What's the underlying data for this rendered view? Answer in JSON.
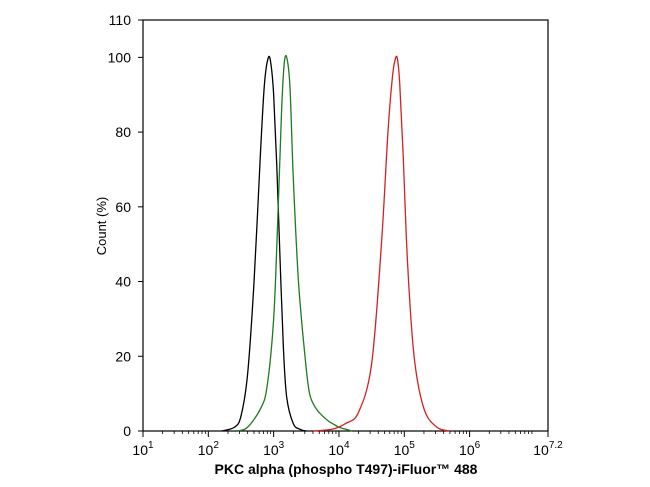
{
  "chart_data": {
    "type": "line",
    "title": "",
    "xlabel": "PKC alpha (phospho T497)-iFluor™ 488",
    "ylabel": "Count  (%)",
    "xscale": "log10",
    "xlim": [
      1,
      7.2
    ],
    "ylim": [
      0,
      110
    ],
    "x_ticks": [
      {
        "base": "10",
        "exp": "1"
      },
      {
        "base": "10",
        "exp": "2"
      },
      {
        "base": "10",
        "exp": "3"
      },
      {
        "base": "10",
        "exp": "4"
      },
      {
        "base": "10",
        "exp": "5"
      },
      {
        "base": "10",
        "exp": "6"
      },
      {
        "base": "10",
        "exp": "7.2"
      }
    ],
    "y_ticks": [
      "0",
      "20",
      "40",
      "60",
      "80",
      "100",
      "110"
    ],
    "grid": false,
    "legend": "none",
    "series": [
      {
        "color": "#000000",
        "x_log10": [
          2.2,
          2.4,
          2.5,
          2.6,
          2.7,
          2.8,
          2.86,
          2.92,
          2.96,
          3.0,
          3.05,
          3.1,
          3.15,
          3.2,
          3.3,
          3.4,
          3.5
        ],
        "y": [
          0,
          1,
          4,
          15,
          40,
          75,
          93,
          100,
          98,
          90,
          70,
          45,
          22,
          9,
          2,
          0.5,
          0
        ]
      },
      {
        "color": "#1e7a1e",
        "x_log10": [
          2.45,
          2.6,
          2.8,
          2.9,
          3.0,
          3.06,
          3.12,
          3.16,
          3.2,
          3.25,
          3.3,
          3.38,
          3.48,
          3.55,
          3.65,
          3.75,
          3.85,
          3.9,
          4.0,
          4.1,
          4.2
        ],
        "y": [
          0,
          1,
          6,
          12,
          30,
          55,
          85,
          98,
          100,
          92,
          68,
          40,
          20,
          10,
          6,
          4,
          2.5,
          2,
          1,
          0.5,
          0
        ]
      },
      {
        "color": "#d42020",
        "x_log10": [
          3.6,
          3.9,
          4.1,
          4.3,
          4.5,
          4.65,
          4.75,
          4.82,
          4.87,
          4.9,
          4.93,
          4.98,
          5.05,
          5.15,
          5.3,
          5.5,
          5.7
        ],
        "y": [
          0,
          0.5,
          2,
          5,
          18,
          50,
          80,
          95,
          100,
          99,
          93,
          75,
          45,
          20,
          6,
          1,
          0
        ]
      }
    ]
  }
}
